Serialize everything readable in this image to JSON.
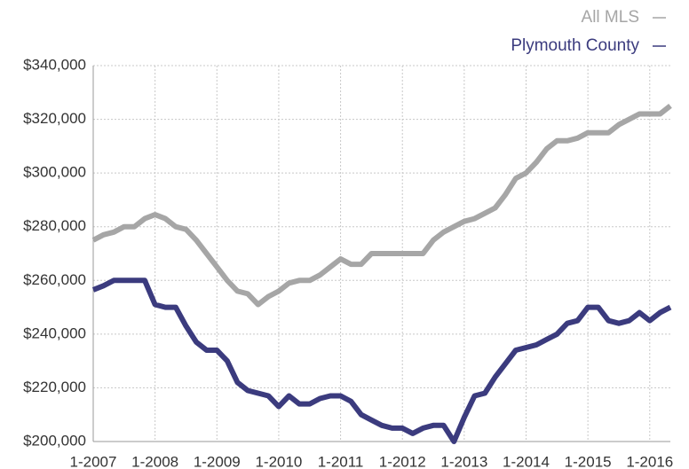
{
  "chart_data": {
    "type": "line",
    "categories": [
      "1-2007",
      null,
      null,
      null,
      null,
      null,
      "1-2008",
      null,
      null,
      null,
      null,
      null,
      "1-2009",
      null,
      null,
      null,
      null,
      null,
      "1-2010",
      null,
      null,
      null,
      null,
      null,
      "1-2011",
      null,
      null,
      null,
      null,
      null,
      "1-2012",
      null,
      null,
      null,
      null,
      null,
      "1-2013",
      null,
      null,
      null,
      null,
      null,
      "1-2014",
      null,
      null,
      null,
      null,
      null,
      "1-2015",
      null,
      null,
      null,
      null,
      null,
      "1-2016",
      null,
      null
    ],
    "series": [
      {
        "name": "All MLS",
        "color": "#a6a6a6",
        "values": [
          275000,
          277000,
          278000,
          280000,
          280000,
          283000,
          284500,
          283000,
          280000,
          279000,
          275000,
          270000,
          265000,
          260000,
          256000,
          255000,
          251000,
          254000,
          256000,
          259000,
          260000,
          260000,
          262000,
          265000,
          268000,
          266000,
          266000,
          270000,
          270000,
          270000,
          270000,
          270000,
          270000,
          275000,
          278000,
          280000,
          282000,
          283000,
          285000,
          287000,
          292000,
          298000,
          300000,
          304000,
          309000,
          312000,
          312000,
          313000,
          315000,
          315000,
          315000,
          318000,
          320000,
          322000,
          322000,
          322000,
          325000
        ]
      },
      {
        "name": "Plymouth County",
        "color": "#3b3b7e",
        "values": [
          256500,
          258000,
          260000,
          260000,
          260000,
          260000,
          251000,
          250000,
          250000,
          243000,
          237000,
          234000,
          234000,
          230000,
          222000,
          219000,
          218000,
          217000,
          213000,
          217000,
          214000,
          214000,
          216000,
          217000,
          217000,
          215000,
          210000,
          208000,
          206000,
          205000,
          205000,
          203000,
          205000,
          206000,
          206000,
          200000,
          209000,
          217000,
          218000,
          224000,
          229000,
          234000,
          235000,
          236000,
          238000,
          240000,
          244000,
          245000,
          250000,
          250000,
          245000,
          244000,
          245000,
          248000,
          245000,
          248000,
          250000
        ]
      }
    ],
    "ylim": [
      200000,
      340000
    ],
    "yticks": [
      {
        "value": 200000,
        "label": "$200,000"
      },
      {
        "value": 220000,
        "label": "$220,000"
      },
      {
        "value": 240000,
        "label": "$240,000"
      },
      {
        "value": 260000,
        "label": "$260,000"
      },
      {
        "value": 280000,
        "label": "$280,000"
      },
      {
        "value": 300000,
        "label": "$300,000"
      },
      {
        "value": 320000,
        "label": "$320,000"
      },
      {
        "value": 340000,
        "label": "$340,000"
      }
    ],
    "grid": true,
    "legend": "top-right"
  }
}
